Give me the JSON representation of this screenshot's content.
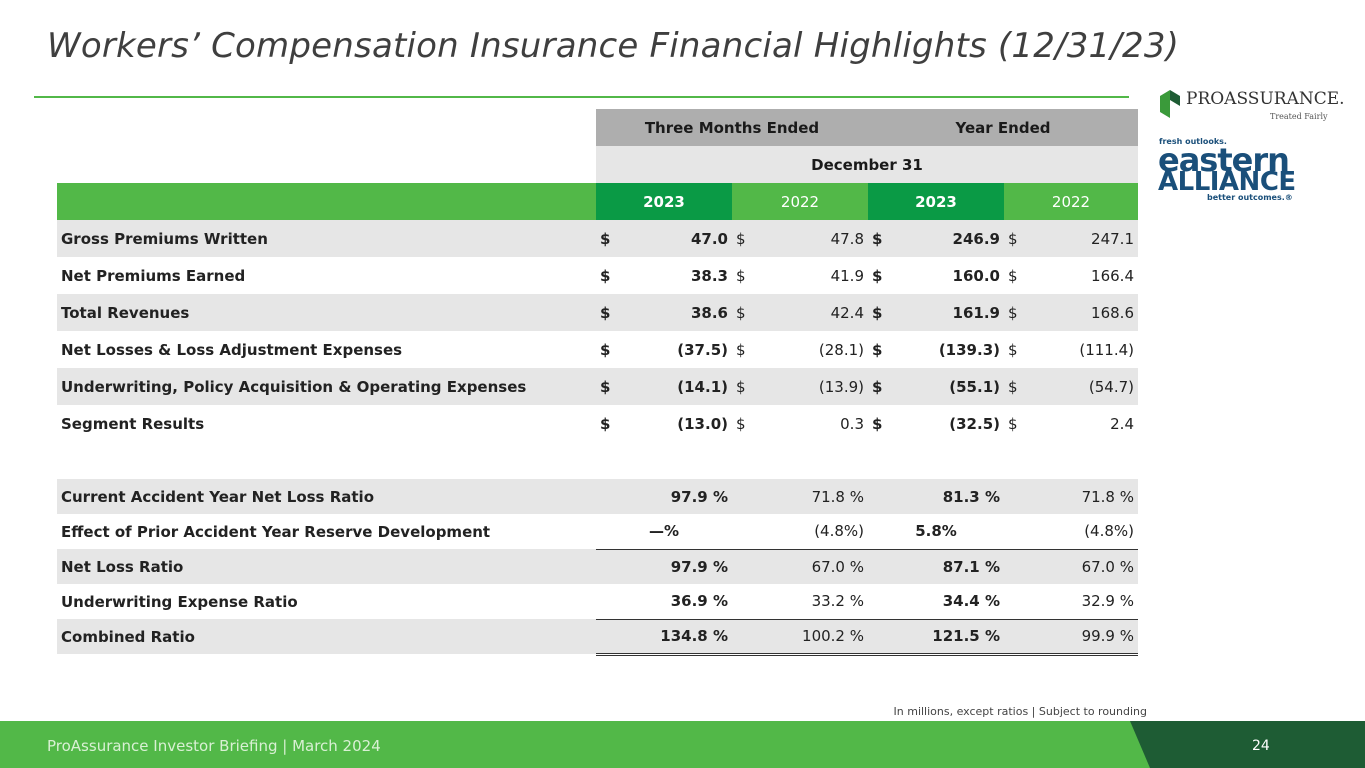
{
  "title": "Workers’ Compensation Insurance Financial Highlights (12/31/23)",
  "logos": {
    "proassurance_name": "PROASSURANCE.",
    "proassurance_tag": "Treated Fairly",
    "ea_top": "fresh outlooks.",
    "ea_word1": "eastern",
    "ea_word2": "ALLIANCE",
    "ea_bottom": "better outcomes.®"
  },
  "table": {
    "header1": {
      "three_months": "Three Months Ended",
      "year": "Year Ended"
    },
    "header2": "December 31",
    "years": [
      "2023",
      "2022",
      "2023",
      "2022"
    ],
    "rows": [
      {
        "label": "Gross Premiums Written",
        "c1": "$",
        "v1": "47.0",
        "c2": "$",
        "v2": "47.8",
        "c3": "$",
        "v3": "246.9",
        "c4": "$",
        "v4": "247.1"
      },
      {
        "label": "Net Premiums Earned",
        "c1": "$",
        "v1": "38.3",
        "c2": "$",
        "v2": "41.9",
        "c3": "$",
        "v3": "160.0",
        "c4": "$",
        "v4": "166.4"
      },
      {
        "label": "Total Revenues",
        "c1": "$",
        "v1": "38.6",
        "c2": "$",
        "v2": "42.4",
        "c3": "$",
        "v3": "161.9",
        "c4": "$",
        "v4": "168.6"
      },
      {
        "label": "Net Losses & Loss Adjustment Expenses",
        "c1": "$",
        "v1": "(37.5)",
        "c2": "$",
        "v2": "(28.1)",
        "c3": "$",
        "v3": "(139.3)",
        "c4": "$",
        "v4": "(111.4)"
      },
      {
        "label": "Underwriting, Policy Acquisition & Operating Expenses",
        "c1": "$",
        "v1": "(14.1)",
        "c2": "$",
        "v2": "(13.9)",
        "c3": "$",
        "v3": "(55.1)",
        "c4": "$",
        "v4": "(54.7)"
      },
      {
        "label": "Segment Results",
        "c1": "$",
        "v1": "(13.0)",
        "c2": "$",
        "v2": "0.3",
        "c3": "$",
        "v3": "(32.5)",
        "c4": "$",
        "v4": "2.4"
      }
    ],
    "ratios": [
      {
        "label": "Current Accident Year Net Loss Ratio",
        "v1": "97.9  %",
        "v2": "71.8  %",
        "v3": "81.3  %",
        "v4": "71.8  %"
      },
      {
        "label": "Effect of Prior Accident Year Reserve Development",
        "v1": "—%",
        "v2": "(4.8%)",
        "v3": "5.8%",
        "v4": "(4.8%)"
      },
      {
        "label": "Net Loss Ratio",
        "v1": "97.9  %",
        "v2": "67.0  %",
        "v3": "87.1  %",
        "v4": "67.0  %"
      },
      {
        "label": "Underwriting Expense Ratio",
        "v1": "36.9  %",
        "v2": "33.2  %",
        "v3": "34.4  %",
        "v4": "32.9  %"
      },
      {
        "label": "Combined Ratio",
        "v1": "134.8  %",
        "v2": "100.2  %",
        "v3": "121.5  %",
        "v4": "99.9  %"
      }
    ]
  },
  "footnote": "In millions, except ratios  |  Subject to rounding",
  "footer": {
    "text": "ProAssurance Investor Briefing | March 2024",
    "page": "24"
  },
  "colors": {
    "green": "#52b848",
    "dark_green": "#0a9a45",
    "footer_dark": "#1e5c34",
    "navy": "#1a4f7a"
  }
}
